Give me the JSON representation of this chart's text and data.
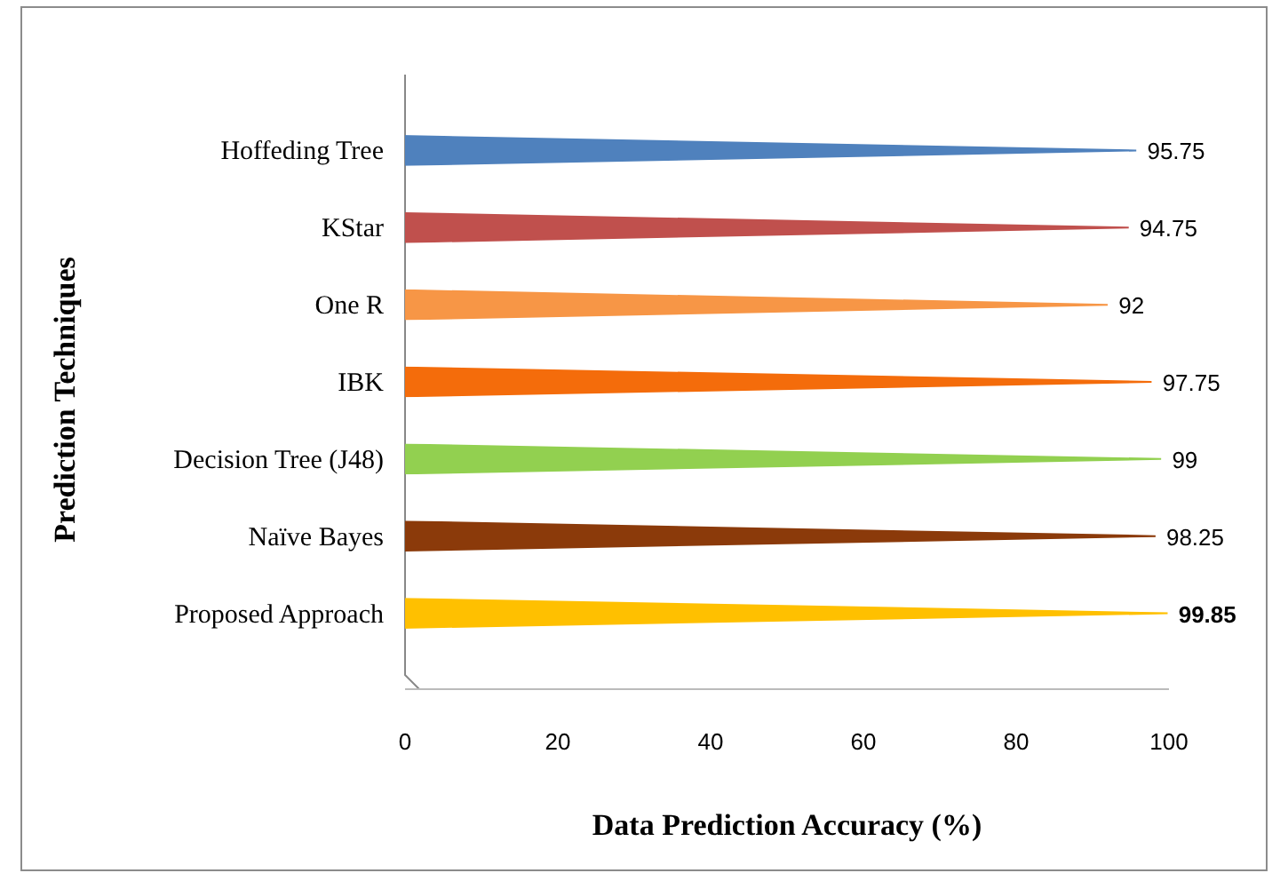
{
  "chart_data": {
    "type": "bar",
    "orientation": "horizontal",
    "xlabel": "Data Prediction Accuracy (%)",
    "ylabel": "Prediction Techniques",
    "categories": [
      "Hoffeding Tree",
      "KStar",
      "One R",
      "IBK",
      "Decision Tree (J48)",
      "Naïve Bayes",
      "Proposed Approach"
    ],
    "values": [
      95.75,
      94.75,
      92,
      97.75,
      99,
      98.25,
      99.85
    ],
    "colors": [
      "#4f81bd",
      "#c0504d",
      "#f79646",
      "#f46c0b",
      "#92d050",
      "#8b3a0a",
      "#ffc000"
    ],
    "xlim": [
      0,
      100
    ],
    "xticks": [
      0,
      20,
      40,
      60,
      80,
      100
    ],
    "data_labels": true,
    "grid": false
  }
}
